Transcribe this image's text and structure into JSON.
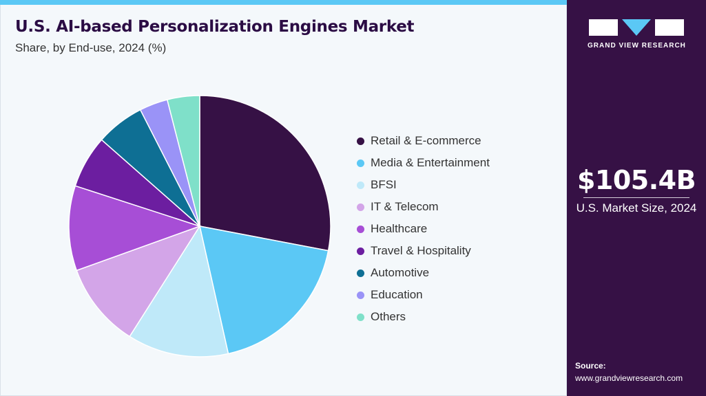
{
  "header": {
    "title": "U.S. AI-based Personalization Engines Market",
    "subtitle": "Share, by End-use, 2024 (%)"
  },
  "chart_data": {
    "type": "pie",
    "title": "U.S. AI-based Personalization Engines Market",
    "subtitle": "Share, by End-use, 2024 (%)",
    "categories": [
      "Retail & E-commerce",
      "Media & Entertainment",
      "BFSI",
      "IT & Telecom",
      "Healthcare",
      "Travel & Hospitality",
      "Automotive",
      "Education",
      "Others"
    ],
    "values": [
      28.0,
      18.5,
      12.5,
      10.5,
      10.5,
      6.5,
      6.0,
      3.5,
      4.0
    ],
    "colors": [
      "#361145",
      "#5bc8f5",
      "#bfe9f9",
      "#d3a5e8",
      "#a74ed6",
      "#6c1ea0",
      "#0e6f94",
      "#9a93f7",
      "#7fe0c9"
    ],
    "legend_position": "right"
  },
  "sidebar": {
    "brand": "GRAND VIEW RESEARCH",
    "market_value": "$105.4B",
    "market_caption": "U.S. Market Size, 2024",
    "source_label": "Source:",
    "source_url": "www.grandviewresearch.com"
  }
}
